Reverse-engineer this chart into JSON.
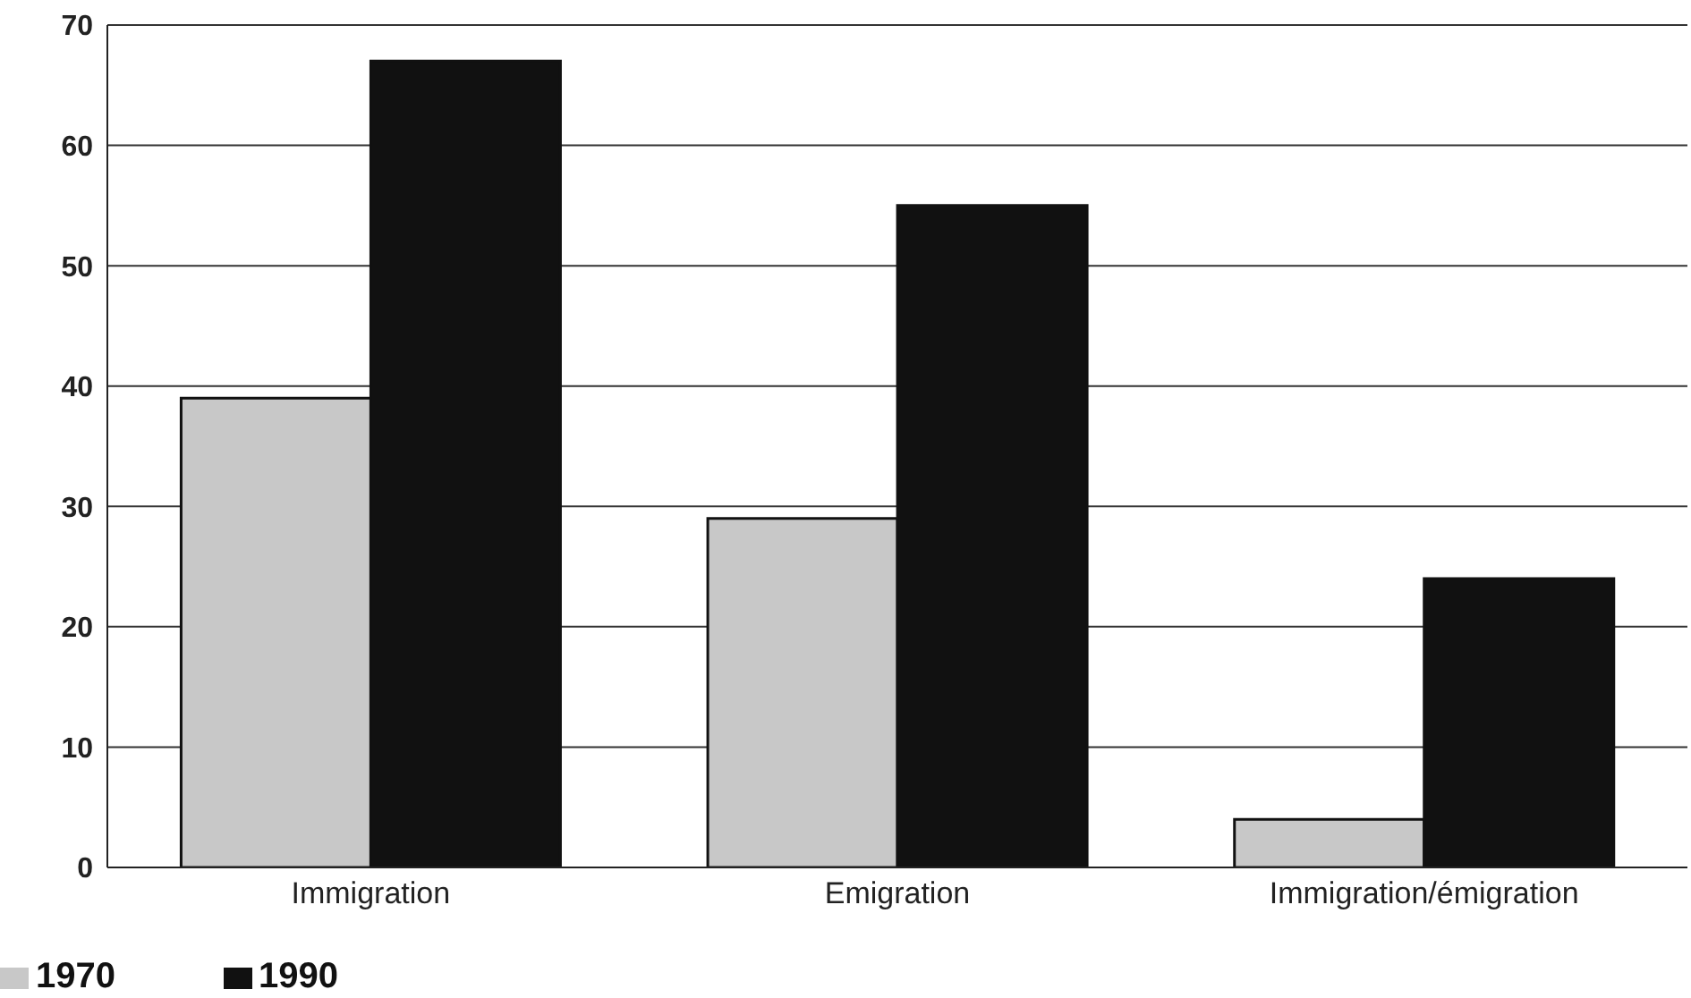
{
  "chart_data": {
    "type": "bar",
    "categories": [
      "Immigration",
      "Emigration",
      "Immigration/émigration"
    ],
    "series": [
      {
        "name": "1970",
        "color": "#c8c8c8",
        "values": [
          39,
          29,
          4
        ]
      },
      {
        "name": "1990",
        "color": "#111111",
        "values": [
          67,
          55,
          24
        ]
      }
    ],
    "ylim": [
      0,
      70
    ],
    "yticks": [
      0,
      10,
      20,
      30,
      40,
      50,
      60,
      70
    ],
    "grid": "y",
    "legend": "bottom left"
  }
}
